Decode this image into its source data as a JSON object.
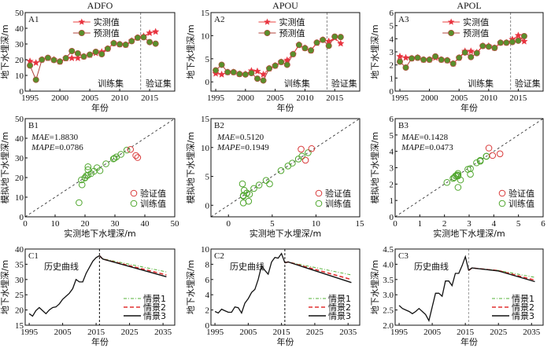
{
  "chart_data": [
    {
      "id": "A1",
      "type": "line",
      "title": "ADFO",
      "panel_label": "A1",
      "xlabel": "年份",
      "ylabel": "地下水埋深/m",
      "xlim": [
        1994.2,
        2019.2
      ],
      "ylim": [
        0,
        50
      ],
      "xticks": [
        1995,
        2000,
        2005,
        2010,
        2015
      ],
      "yticks": [
        0,
        10,
        20,
        30,
        40,
        50
      ],
      "split_year": 2013.5,
      "region_labels": [
        "训练集",
        "验证集"
      ],
      "x": [
        1995,
        1996,
        1997,
        1998,
        1999,
        2000,
        2001,
        2002,
        2003,
        2004,
        2005,
        2006,
        2007,
        2008,
        2009,
        2010,
        2011,
        2012,
        2013,
        2014,
        2015,
        2016
      ],
      "series": [
        {
          "name": "实测值",
          "marker": "star",
          "values": [
            19,
            18,
            20,
            21,
            20,
            18.8,
            20.8,
            21,
            21,
            22,
            23,
            24.2,
            25,
            27,
            30.5,
            29.8,
            29.5,
            32,
            34,
            35,
            37,
            37.8
          ]
        },
        {
          "name": "预测值",
          "marker": "circle",
          "values": [
            16.3,
            7.2,
            20,
            21.2,
            19.8,
            18.8,
            21,
            25.5,
            24,
            22,
            23.2,
            25,
            23.5,
            27,
            30.5,
            29.8,
            29.5,
            31.8,
            34,
            34.3,
            31.2,
            30.2
          ]
        }
      ],
      "legend": "top-center"
    },
    {
      "id": "A2",
      "type": "line",
      "title": "APOU",
      "panel_label": "A2",
      "xlabel": "年份",
      "ylabel": "地下水埋深/m",
      "xlim": [
        1994.2,
        2019.2
      ],
      "ylim": [
        -2,
        15
      ],
      "xticks": [
        1995,
        2000,
        2005,
        2010,
        2015
      ],
      "yticks": [
        0,
        5,
        10,
        15
      ],
      "split_year": 2013.7,
      "region_labels": [
        "训练集",
        "验证集"
      ],
      "x": [
        1995,
        1996,
        1997,
        1998,
        1999,
        2000,
        2001,
        2002,
        2003,
        2004,
        2005,
        2006,
        2007,
        2008,
        2009,
        2010,
        2011,
        2012,
        2013,
        2014,
        2015,
        2016
      ],
      "series": [
        {
          "name": "实测值",
          "marker": "star",
          "values": [
            1.8,
            1.6,
            2.1,
            2.1,
            1.7,
            1.7,
            2.4,
            2.3,
            1.6,
            2.9,
            3.5,
            4.3,
            4.7,
            6,
            8,
            7.3,
            6.8,
            8.4,
            9.1,
            8.8,
            9.5,
            8.3
          ]
        },
        {
          "name": "预测值",
          "marker": "circle",
          "values": [
            2.5,
            3.7,
            2.1,
            2.1,
            1.7,
            1.6,
            1.9,
            0.7,
            0.3,
            2.9,
            3.5,
            4.3,
            3.7,
            6,
            8,
            7.3,
            6.8,
            8.5,
            9.1,
            7.8,
            9.8,
            9.7
          ]
        }
      ],
      "legend": "top-center"
    },
    {
      "id": "A3",
      "type": "line",
      "title": "APOL",
      "panel_label": "A3",
      "xlabel": "年份",
      "ylabel": "地下水埋深/m",
      "xlim": [
        1994.2,
        2019.2
      ],
      "ylim": [
        0,
        6
      ],
      "xticks": [
        1995,
        2000,
        2005,
        2010,
        2015
      ],
      "yticks": [
        0,
        1,
        2,
        3,
        4,
        5,
        6
      ],
      "split_year": 2013.7,
      "region_labels": [
        "训练集",
        "验证集"
      ],
      "x": [
        1995,
        1996,
        1997,
        1998,
        1999,
        2000,
        2001,
        2002,
        2003,
        2004,
        2005,
        2006,
        2007,
        2008,
        2009,
        2010,
        2011,
        2012,
        2013,
        2014,
        2015,
        2016
      ],
      "series": [
        {
          "name": "实测值",
          "marker": "star",
          "values": [
            2.65,
            2.55,
            2.5,
            2.55,
            2.4,
            2.4,
            2.55,
            2.4,
            2.35,
            2.1,
            2.55,
            3.05,
            3.05,
            2.95,
            3.45,
            3.45,
            3.3,
            3.7,
            3.7,
            3.95,
            4.25,
            3.8
          ]
        },
        {
          "name": "预测值",
          "marker": "circle",
          "values": [
            2.25,
            1.8,
            2.5,
            2.55,
            2.4,
            2.4,
            2.65,
            2.4,
            2.35,
            2.1,
            2.55,
            2.95,
            2.6,
            2.9,
            3.45,
            3.4,
            3.3,
            3.7,
            3.7,
            3.75,
            3.85,
            4.2
          ]
        }
      ],
      "legend": "top-center"
    },
    {
      "id": "B1",
      "type": "scatter",
      "panel_label": "B1",
      "xlabel": "实测地下水埋深/m",
      "ylabel": "模拟地下水埋深/m",
      "xlim": [
        0,
        50
      ],
      "ylim": [
        0,
        50
      ],
      "xticks": [
        0,
        10,
        20,
        30,
        40,
        50
      ],
      "yticks": [
        0,
        10,
        20,
        30,
        40,
        50
      ],
      "annotations": [
        {
          "name": "MAE",
          "value": "=1.8830"
        },
        {
          "name": "MAPE",
          "value": "=0.0786"
        }
      ],
      "identity_line": true,
      "series": [
        {
          "name": "验证值",
          "color": "#d93a3a",
          "points": [
            [
              35.2,
              34.3
            ],
            [
              37,
              31.2
            ],
            [
              37.6,
              30.2
            ]
          ]
        },
        {
          "name": "训练值",
          "color": "#4fa62d",
          "points": [
            [
              18,
              7.2
            ],
            [
              19,
              16.3
            ],
            [
              18.8,
              18.8
            ],
            [
              20,
              19.8
            ],
            [
              20,
              20
            ],
            [
              20.5,
              21
            ],
            [
              21,
              21.2
            ],
            [
              21,
              25.5
            ],
            [
              21,
              24
            ],
            [
              22,
              22
            ],
            [
              23,
              23.2
            ],
            [
              24,
              25
            ],
            [
              25,
              23.5
            ],
            [
              27,
              27
            ],
            [
              29.5,
              29.5
            ],
            [
              29.8,
              29.8
            ],
            [
              30.5,
              30.5
            ],
            [
              32,
              31.8
            ],
            [
              34,
              34
            ]
          ]
        }
      ],
      "legend": "bottom-right"
    },
    {
      "id": "B2",
      "type": "scatter",
      "panel_label": "B2",
      "xlabel": "实测地下水埋深/m",
      "ylabel": "模拟地下水埋深/m",
      "xlim": [
        -2,
        15
      ],
      "ylim": [
        -2,
        15
      ],
      "xticks": [
        0,
        5,
        10,
        15
      ],
      "yticks": [
        0,
        5,
        10,
        15
      ],
      "annotations": [
        {
          "name": "MAE",
          "value": "=0.5120"
        },
        {
          "name": "MAPE",
          "value": "=0.1949"
        }
      ],
      "identity_line": true,
      "series": [
        {
          "name": "验证值",
          "color": "#d93a3a",
          "points": [
            [
              8.3,
              9.7
            ],
            [
              8.8,
              7.8
            ],
            [
              9.5,
              9.8
            ]
          ]
        },
        {
          "name": "训练值",
          "color": "#4fa62d",
          "points": [
            [
              1.6,
              3.7
            ],
            [
              1.7,
              0.4
            ],
            [
              1.8,
              2.6
            ],
            [
              1.7,
              1.6
            ],
            [
              2.1,
              2.1
            ],
            [
              2.1,
              2.1
            ],
            [
              1.7,
              1.7
            ],
            [
              2.3,
              0.7
            ],
            [
              2.4,
              1.9
            ],
            [
              2.9,
              2.9
            ],
            [
              3.5,
              3.5
            ],
            [
              4.3,
              4.3
            ],
            [
              4.7,
              3.7
            ],
            [
              6,
              6
            ],
            [
              6.8,
              6.8
            ],
            [
              7.3,
              7.3
            ],
            [
              8,
              8
            ],
            [
              8.4,
              8.5
            ],
            [
              9.1,
              9.1
            ]
          ]
        }
      ],
      "legend": "bottom-right"
    },
    {
      "id": "B3",
      "type": "scatter",
      "panel_label": "B3",
      "xlabel": "实测地下水埋深/m",
      "ylabel": "模拟地下水埋深/m",
      "xlim": [
        0,
        6
      ],
      "ylim": [
        0,
        6
      ],
      "xticks": [
        0,
        1,
        2,
        3,
        4,
        5,
        6
      ],
      "yticks": [
        0,
        1,
        2,
        3,
        4,
        5,
        6
      ],
      "annotations": [
        {
          "name": "MAE",
          "value": "=0.1428"
        },
        {
          "name": "MAPE",
          "value": "=0.0473"
        }
      ],
      "identity_line": true,
      "series": [
        {
          "name": "验证值",
          "color": "#d93a3a",
          "points": [
            [
              3.8,
              4.2
            ],
            [
              3.95,
              3.75
            ],
            [
              4.25,
              3.85
            ]
          ]
        },
        {
          "name": "训练值",
          "color": "#4fa62d",
          "points": [
            [
              2.1,
              2.1
            ],
            [
              2.35,
              2.35
            ],
            [
              2.4,
              2.4
            ],
            [
              2.45,
              2.5
            ],
            [
              2.5,
              2.55
            ],
            [
              2.55,
              2.65
            ],
            [
              2.55,
              1.8
            ],
            [
              2.55,
              2.55
            ],
            [
              2.65,
              2.25
            ],
            [
              2.95,
              2.9
            ],
            [
              3.05,
              2.95
            ],
            [
              3.05,
              2.6
            ],
            [
              3.3,
              3.3
            ],
            [
              3.45,
              3.45
            ],
            [
              3.45,
              3.4
            ],
            [
              3.7,
              3.7
            ],
            [
              3.7,
              3.7
            ],
            [
              2.4,
              2.4
            ],
            [
              2.55,
              2.5
            ]
          ]
        }
      ],
      "legend": "bottom-right"
    },
    {
      "id": "C1",
      "type": "line",
      "panel_label": "C1",
      "xlabel": "年份",
      "ylabel": "地下水埋深/m",
      "xlim": [
        1993.8,
        2038.5
      ],
      "ylim": [
        15,
        40
      ],
      "xticks": [
        1995,
        2005,
        2015,
        2025,
        2035
      ],
      "yticks": [
        15,
        20,
        25,
        30,
        35,
        40
      ],
      "split_year": 2016,
      "history_label": "历史曲线",
      "history": {
        "x": [
          1995,
          1996,
          1997,
          1998,
          1999,
          2000,
          2001,
          2002,
          2003,
          2004,
          2005,
          2006,
          2007,
          2008,
          2009,
          2010,
          2011,
          2012,
          2013,
          2014,
          2015,
          2016
        ],
        "values": [
          18.8,
          18,
          19.8,
          20.8,
          19.8,
          18.8,
          20,
          20.8,
          21,
          22,
          23.5,
          24.5,
          25.5,
          27,
          30,
          29.2,
          29.2,
          32,
          34,
          36,
          37.2,
          37.8
        ]
      },
      "scenarios_x": [
        2016,
        2017,
        2036
      ],
      "series": [
        {
          "name": "情景1",
          "style": "dash-dot",
          "color": "#55b33a",
          "values": [
            37.8,
            36.8,
            32.5
          ]
        },
        {
          "name": "情景2",
          "style": "dashed",
          "color": "#e03030",
          "values": [
            37.8,
            36.7,
            31.5
          ]
        },
        {
          "name": "情景3",
          "style": "solid",
          "color": "#111111",
          "values": [
            37.8,
            36.7,
            30.9
          ]
        }
      ],
      "legend": "bottom-right"
    },
    {
      "id": "C2",
      "type": "line",
      "panel_label": "C2",
      "xlabel": "年份",
      "ylabel": "地下水埋深/m",
      "xlim": [
        1993.8,
        2038.5
      ],
      "ylim": [
        0,
        10
      ],
      "xticks": [
        1995,
        2005,
        2015,
        2025,
        2035
      ],
      "yticks": [
        0,
        2,
        4,
        6,
        8,
        10
      ],
      "split_year": 2016,
      "history_label": "历史曲线",
      "history": {
        "x": [
          1995,
          1996,
          1997,
          1998,
          1999,
          2000,
          2001,
          2002,
          2003,
          2004,
          2005,
          2006,
          2007,
          2008,
          2009,
          2010,
          2011,
          2012,
          2013,
          2014,
          2015,
          2016
        ],
        "values": [
          1.8,
          1.6,
          2.1,
          1.9,
          1.7,
          1.7,
          2.4,
          2.3,
          1.6,
          2.9,
          3.5,
          4.3,
          4.7,
          6,
          7.8,
          7.2,
          6.7,
          8.3,
          8.9,
          8.8,
          9.4,
          8.2
        ]
      },
      "scenarios_x": [
        2016,
        2017,
        2036
      ],
      "series": [
        {
          "name": "情景1",
          "style": "dash-dot",
          "color": "#55b33a",
          "values": [
            8.2,
            8.3,
            6.6
          ]
        },
        {
          "name": "情景2",
          "style": "dashed",
          "color": "#e03030",
          "values": [
            8.2,
            8.3,
            6.0
          ]
        },
        {
          "name": "情景3",
          "style": "solid",
          "color": "#111111",
          "values": [
            8.2,
            8.3,
            5.6
          ]
        }
      ],
      "legend": "bottom-right"
    },
    {
      "id": "C3",
      "type": "line",
      "panel_label": "C3",
      "xlabel": "年份",
      "ylabel": "地下水埋深/m",
      "xlim": [
        1993.8,
        2038.5
      ],
      "ylim": [
        2.0,
        4.5
      ],
      "xticks": [
        1995,
        2005,
        2015,
        2025,
        2035
      ],
      "yticks": [
        "2.0",
        "2.5",
        "3.0",
        "3.5",
        "4.0",
        "4.5"
      ],
      "split_year": 2016,
      "history_label": "历史曲线",
      "history": {
        "x": [
          1995,
          1996,
          1997,
          1998,
          1999,
          2000,
          2001,
          2002,
          2003,
          2004,
          2005,
          2006,
          2007,
          2008,
          2009,
          2010,
          2011,
          2012,
          2013,
          2014,
          2015,
          2016
        ],
        "values": [
          2.65,
          2.55,
          2.5,
          2.45,
          2.38,
          2.45,
          2.55,
          2.45,
          2.35,
          2.15,
          2.6,
          3.05,
          3.05,
          2.95,
          3.45,
          3.45,
          3.3,
          3.7,
          3.7,
          3.95,
          4.25,
          3.8
        ]
      },
      "scenarios_x": [
        2016,
        2017,
        2025,
        2036
      ],
      "series": [
        {
          "name": "情景1",
          "style": "dash-dot",
          "color": "#55b33a",
          "values": [
            3.8,
            3.88,
            3.8,
            3.57
          ]
        },
        {
          "name": "情景2",
          "style": "dashed",
          "color": "#e03030",
          "values": [
            3.8,
            3.88,
            3.79,
            3.48
          ]
        },
        {
          "name": "情景3",
          "style": "solid",
          "color": "#111111",
          "values": [
            3.8,
            3.88,
            3.78,
            3.43
          ]
        }
      ],
      "legend": "bottom-right"
    }
  ]
}
